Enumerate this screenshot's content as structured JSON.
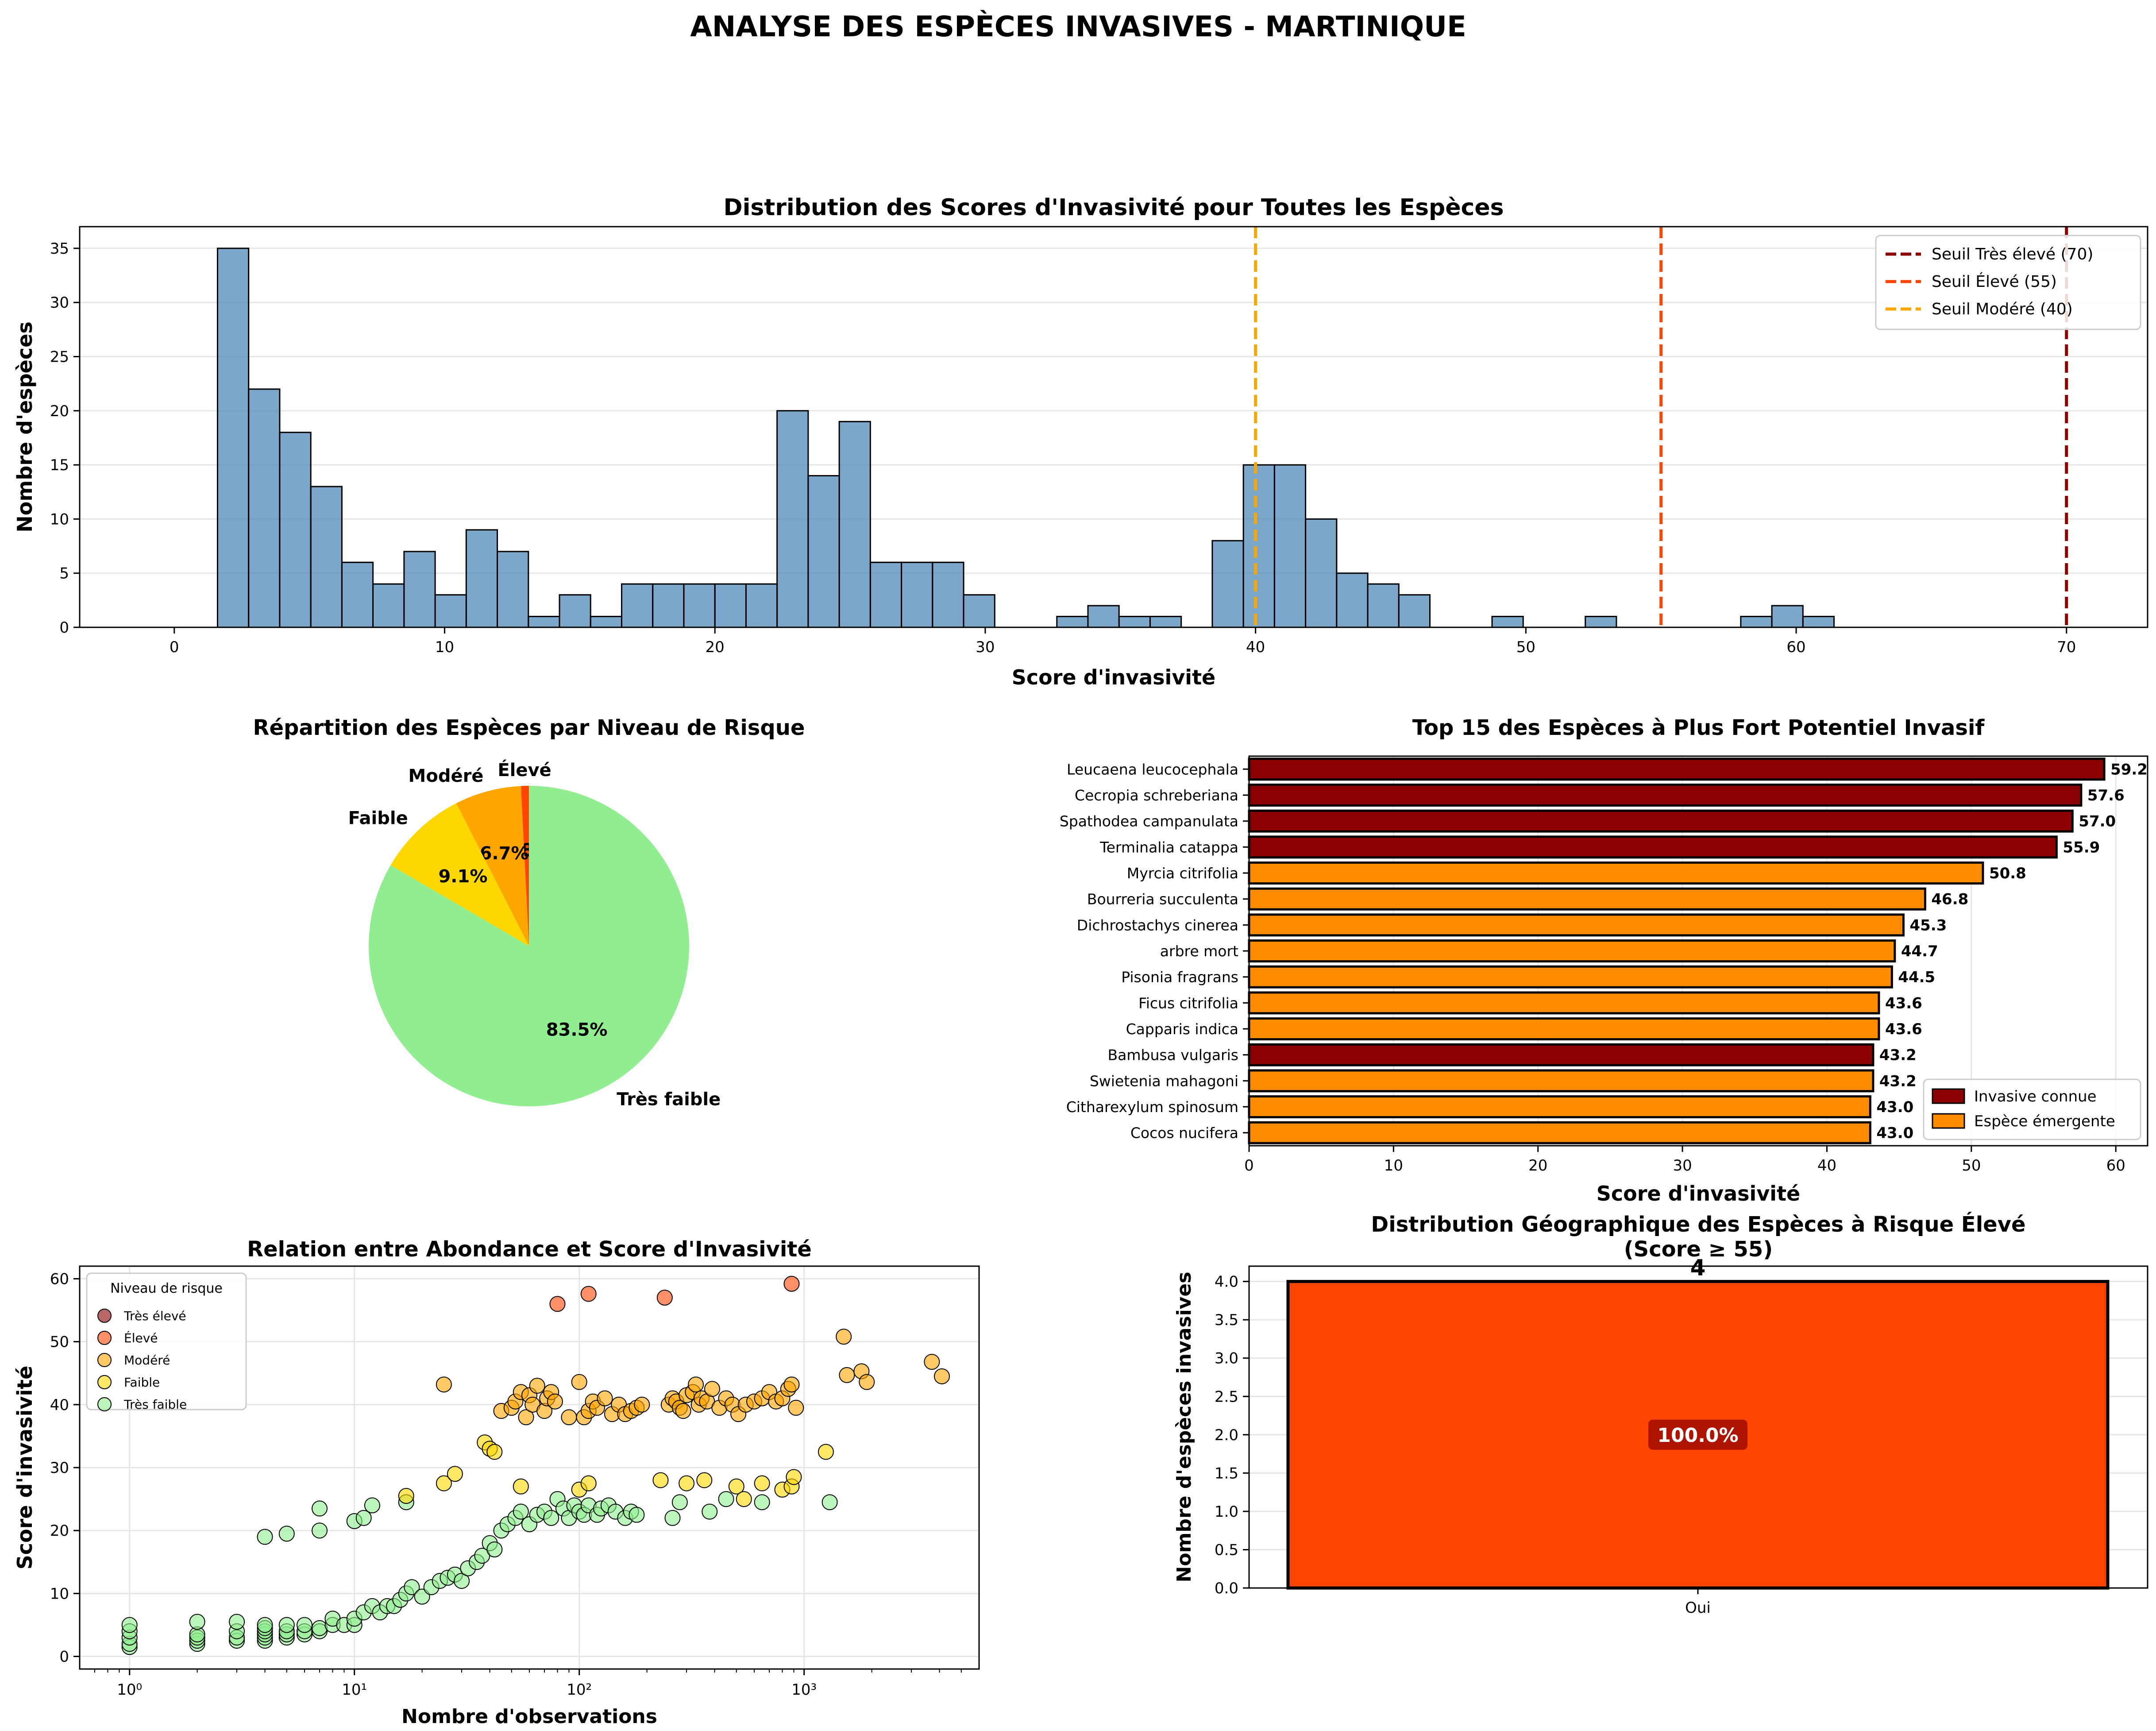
{
  "suptitle": "ANALYSE DES ESPÈCES INVASIVES - MARTINIQUE",
  "colors": {
    "tres_eleve": "#8B0000",
    "eleve": "#FF4500",
    "modere": "#FFA500",
    "faible": "#FFD700",
    "tres_faible": "#90EE90",
    "histogram": "#4682B4",
    "known": "#8B0000",
    "emergent": "#FF8C00"
  },
  "chart_data": [
    {
      "type": "bar",
      "id": "histogram",
      "title": "Distribution des Scores d'Invasivité pour Toutes les Espèces",
      "xlabel": "Score d'invasivité",
      "ylabel": "Nombre d'espèces",
      "xlim": [
        -3.5,
        73
      ],
      "ylim": [
        0,
        37
      ],
      "xticks": [
        0,
        10,
        20,
        30,
        40,
        50,
        60,
        70
      ],
      "yticks": [
        0,
        5,
        10,
        15,
        20,
        25,
        30,
        35
      ],
      "bin_width": 1.15,
      "bin_start": 1.6,
      "counts": [
        35,
        22,
        18,
        13,
        6,
        4,
        7,
        3,
        9,
        7,
        1,
        3,
        1,
        4,
        4,
        4,
        4,
        4,
        20,
        14,
        19,
        6,
        6,
        6,
        3,
        0,
        0,
        1,
        2,
        1,
        1,
        0,
        8,
        15,
        15,
        10,
        5,
        4,
        3,
        0,
        0,
        1,
        0,
        0,
        1,
        0,
        0,
        0,
        0,
        1,
        2,
        1
      ],
      "thresholds": [
        {
          "value": 70,
          "label": "Seuil Très élevé (70)",
          "color": "#8B0000"
        },
        {
          "value": 55,
          "label": "Seuil Élevé (55)",
          "color": "#FF4500"
        },
        {
          "value": 40,
          "label": "Seuil Modéré (40)",
          "color": "#FFA500"
        }
      ],
      "legend_position": "upper right",
      "grid": "y"
    },
    {
      "type": "pie",
      "id": "pie",
      "title": "Répartition des Espèces par Niveau de Risque",
      "slices": [
        {
          "label": "Élevé",
          "value": 0.8,
          "pct": "0.8%",
          "color": "#FF4500"
        },
        {
          "label": "Modéré",
          "value": 6.7,
          "pct": "6.7%",
          "color": "#FFA500"
        },
        {
          "label": "Faible",
          "value": 9.1,
          "pct": "9.1%",
          "color": "#FFD700"
        },
        {
          "label": "Très faible",
          "value": 83.5,
          "pct": "83.5%",
          "color": "#90EE90"
        }
      ]
    },
    {
      "type": "bar",
      "id": "top15",
      "orientation": "horizontal",
      "title": "Top 15 des Espèces à Plus Fort Potentiel Invasif",
      "xlabel": "Score d'invasivité",
      "xlim": [
        0,
        62.2
      ],
      "xticks": [
        0,
        10,
        20,
        30,
        40,
        50,
        60
      ],
      "categories": [
        "Leucaena leucocephala",
        "Cecropia schreberiana",
        "Spathodea campanulata",
        "Terminalia catappa",
        "Myrcia citrifolia",
        "Bourreria succulenta",
        "Dichrostachys cinerea",
        "arbre mort",
        "Pisonia fragrans",
        "Ficus citrifolia",
        "Capparis indica",
        "Bambusa vulgaris",
        "Swietenia mahagoni",
        "Citharexylum spinosum",
        "Cocos nucifera"
      ],
      "values": [
        59.2,
        57.6,
        57.0,
        55.9,
        50.8,
        46.8,
        45.3,
        44.7,
        44.5,
        43.6,
        43.6,
        43.2,
        43.2,
        43.0,
        43.0
      ],
      "value_labels": [
        "59.2",
        "57.6",
        "57.0",
        "55.9",
        "50.8",
        "46.8",
        "45.3",
        "44.7",
        "44.5",
        "43.6",
        "43.6",
        "43.2",
        "43.2",
        "43.0",
        "43.0"
      ],
      "groups": [
        "known",
        "known",
        "known",
        "known",
        "emergent",
        "emergent",
        "emergent",
        "emergent",
        "emergent",
        "emergent",
        "emergent",
        "known",
        "emergent",
        "emergent",
        "emergent"
      ],
      "legend": [
        {
          "key": "known",
          "label": "Invasive connue"
        },
        {
          "key": "emergent",
          "label": "Espèce émergente"
        }
      ],
      "legend_position": "lower right",
      "grid": "x"
    },
    {
      "type": "scatter",
      "id": "scatter",
      "title": "Relation entre Abondance et Score d'Invasivité",
      "xlabel": "Nombre d'observations",
      "ylabel": "Score d'invasivité",
      "xscale": "log",
      "xlim": [
        0.6,
        6000
      ],
      "ylim": [
        -2,
        62
      ],
      "xtick_labels": [
        "10⁰",
        "10¹",
        "10²",
        "10³"
      ],
      "xticks": [
        1,
        10,
        100,
        1000
      ],
      "yticks": [
        0,
        10,
        20,
        30,
        40,
        50,
        60
      ],
      "legend_title": "Niveau de risque",
      "legend_position": "upper left",
      "series": [
        {
          "name": "Très élevé",
          "key": "tres_eleve",
          "points": []
        },
        {
          "name": "Élevé",
          "key": "eleve",
          "points": [
            [
              80,
              56
            ],
            [
              110,
              57.6
            ],
            [
              240,
              57
            ],
            [
              880,
              59.2
            ]
          ]
        },
        {
          "name": "Modéré",
          "key": "modere",
          "points": [
            [
              25,
              43.2
            ],
            [
              45,
              39
            ],
            [
              50,
              39.5
            ],
            [
              52,
              40.5
            ],
            [
              55,
              42
            ],
            [
              58,
              38
            ],
            [
              60,
              41.5
            ],
            [
              62,
              40
            ],
            [
              65,
              43
            ],
            [
              70,
              39
            ],
            [
              72,
              41
            ],
            [
              75,
              42
            ],
            [
              78,
              40.5
            ],
            [
              90,
              38
            ],
            [
              100,
              43.6
            ],
            [
              105,
              38
            ],
            [
              110,
              39
            ],
            [
              115,
              40.5
            ],
            [
              120,
              39.5
            ],
            [
              130,
              41
            ],
            [
              140,
              38.5
            ],
            [
              150,
              40
            ],
            [
              160,
              38.5
            ],
            [
              170,
              39
            ],
            [
              180,
              39.5
            ],
            [
              190,
              40
            ],
            [
              250,
              40
            ],
            [
              260,
              41
            ],
            [
              270,
              40.5
            ],
            [
              280,
              39.5
            ],
            [
              290,
              39
            ],
            [
              300,
              41.5
            ],
            [
              320,
              42
            ],
            [
              330,
              43.2
            ],
            [
              340,
              40
            ],
            [
              350,
              41
            ],
            [
              370,
              40.5
            ],
            [
              390,
              42.5
            ],
            [
              420,
              39.5
            ],
            [
              450,
              41
            ],
            [
              480,
              40
            ],
            [
              510,
              38.5
            ],
            [
              550,
              40
            ],
            [
              600,
              40.5
            ],
            [
              650,
              41
            ],
            [
              700,
              42
            ],
            [
              750,
              40.5
            ],
            [
              800,
              41
            ],
            [
              850,
              42.5
            ],
            [
              880,
              43.2
            ],
            [
              920,
              39.5
            ],
            [
              1500,
              50.8
            ],
            [
              1550,
              44.7
            ],
            [
              1800,
              45.3
            ],
            [
              1900,
              43.6
            ],
            [
              3700,
              46.8
            ],
            [
              4100,
              44.5
            ]
          ]
        },
        {
          "name": "Faible",
          "key": "faible",
          "points": [
            [
              17,
              25.5
            ],
            [
              25,
              27.5
            ],
            [
              28,
              29
            ],
            [
              38,
              34
            ],
            [
              40,
              33
            ],
            [
              42,
              32.5
            ],
            [
              55,
              27
            ],
            [
              100,
              26.5
            ],
            [
              110,
              27.5
            ],
            [
              230,
              28
            ],
            [
              300,
              27.5
            ],
            [
              360,
              28
            ],
            [
              500,
              27
            ],
            [
              540,
              25
            ],
            [
              650,
              27.5
            ],
            [
              800,
              26.5
            ],
            [
              880,
              27
            ],
            [
              900,
              28.5
            ],
            [
              1250,
              32.5
            ]
          ]
        },
        {
          "name": "Très faible",
          "key": "tres_faible",
          "points": [
            [
              1,
              1.5
            ],
            [
              1,
              2
            ],
            [
              1,
              3
            ],
            [
              1,
              4
            ],
            [
              1,
              5
            ],
            [
              2,
              2
            ],
            [
              2,
              2.5
            ],
            [
              2,
              3
            ],
            [
              2,
              3.5
            ],
            [
              2,
              5.5
            ],
            [
              3,
              2.5
            ],
            [
              3,
              3
            ],
            [
              3,
              4
            ],
            [
              3,
              5.5
            ],
            [
              4,
              2.5
            ],
            [
              4,
              3
            ],
            [
              4,
              3.5
            ],
            [
              4,
              4
            ],
            [
              4,
              4.5
            ],
            [
              4,
              5
            ],
            [
              5,
              3
            ],
            [
              5,
              3.5
            ],
            [
              5,
              4
            ],
            [
              5,
              5
            ],
            [
              6,
              3.5
            ],
            [
              6,
              4
            ],
            [
              6,
              5
            ],
            [
              7,
              4
            ],
            [
              7,
              4.5
            ],
            [
              8,
              5
            ],
            [
              8,
              6
            ],
            [
              9,
              5
            ],
            [
              10,
              5
            ],
            [
              10,
              6
            ],
            [
              11,
              7
            ],
            [
              12,
              8
            ],
            [
              13,
              7
            ],
            [
              14,
              8
            ],
            [
              15,
              8
            ],
            [
              16,
              9
            ],
            [
              17,
              10
            ],
            [
              18,
              11
            ],
            [
              20,
              9.5
            ],
            [
              22,
              11
            ],
            [
              24,
              12
            ],
            [
              26,
              12.5
            ],
            [
              28,
              13
            ],
            [
              30,
              12
            ],
            [
              32,
              14
            ],
            [
              35,
              15
            ],
            [
              37,
              16
            ],
            [
              40,
              18
            ],
            [
              42,
              17
            ],
            [
              45,
              20
            ],
            [
              48,
              21
            ],
            [
              52,
              22
            ],
            [
              55,
              23
            ],
            [
              60,
              21
            ],
            [
              65,
              22.5
            ],
            [
              70,
              23
            ],
            [
              75,
              22
            ],
            [
              80,
              25
            ],
            [
              85,
              23.5
            ],
            [
              90,
              22
            ],
            [
              95,
              24
            ],
            [
              100,
              23
            ],
            [
              105,
              22.5
            ],
            [
              110,
              24
            ],
            [
              120,
              22.5
            ],
            [
              125,
              23.5
            ],
            [
              135,
              24
            ],
            [
              145,
              23
            ],
            [
              160,
              22
            ],
            [
              170,
              23
            ],
            [
              180,
              22.5
            ],
            [
              260,
              22
            ],
            [
              280,
              24.5
            ],
            [
              380,
              23
            ],
            [
              450,
              25
            ],
            [
              650,
              24.5
            ],
            [
              4,
              19
            ],
            [
              5,
              19.5
            ],
            [
              7,
              20
            ],
            [
              7,
              23.5
            ],
            [
              10,
              21.5
            ],
            [
              11,
              22
            ],
            [
              12,
              24
            ],
            [
              17,
              24.5
            ],
            [
              1300,
              24.5
            ]
          ]
        }
      ]
    },
    {
      "type": "bar",
      "id": "geo",
      "title": "Distribution Géographique des Espèces à Risque Élevé",
      "subtitle": "(Score ≥ 55)",
      "ylabel": "Nombre d'espèces invasives",
      "categories": [
        "Oui"
      ],
      "values": [
        4
      ],
      "value_labels": [
        "4"
      ],
      "pct_labels": [
        "100.0%"
      ],
      "ylim": [
        0,
        4.2
      ],
      "yticks": [
        0.0,
        0.5,
        1.0,
        1.5,
        2.0,
        2.5,
        3.0,
        3.5,
        4.0
      ],
      "ytick_labels": [
        "0.0",
        "0.5",
        "1.0",
        "1.5",
        "2.0",
        "2.5",
        "3.0",
        "3.5",
        "4.0"
      ],
      "grid": "y"
    }
  ]
}
